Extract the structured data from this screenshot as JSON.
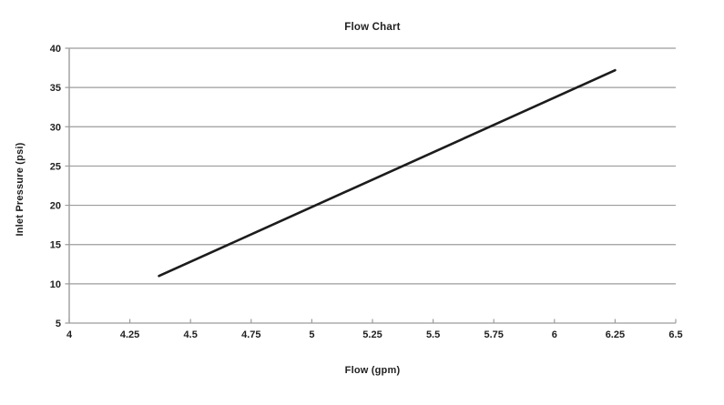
{
  "chart_data": {
    "type": "line",
    "title": "Flow Chart",
    "xlabel": "Flow (gpm)",
    "ylabel": "Inlet Pressure (psi)",
    "xlim": [
      4,
      6.5
    ],
    "ylim": [
      5,
      40
    ],
    "x_ticks": [
      4,
      4.25,
      4.5,
      4.75,
      5,
      5.25,
      5.5,
      5.75,
      6,
      6.25,
      6.5
    ],
    "x_tick_labels": [
      "4",
      "4.25",
      "4.5",
      "4.75",
      "5",
      "5.25",
      "5.5",
      "5.75",
      "6",
      "6.25",
      "6.5"
    ],
    "y_ticks": [
      5,
      10,
      15,
      20,
      25,
      30,
      35,
      40
    ],
    "y_tick_labels": [
      "5",
      "10",
      "15",
      "20",
      "25",
      "30",
      "35",
      "40"
    ],
    "grid": "horizontal",
    "legend": "none",
    "series": [
      {
        "x": [
          4.37,
          6.25
        ],
        "y": [
          11,
          37.2
        ],
        "color": "#1c1c1c",
        "width": 2.6
      }
    ],
    "colors": {
      "grid": "#9c9c9c",
      "axis": "#9c9c9c",
      "text": "#1f1f1f",
      "background": "#ffffff"
    }
  }
}
